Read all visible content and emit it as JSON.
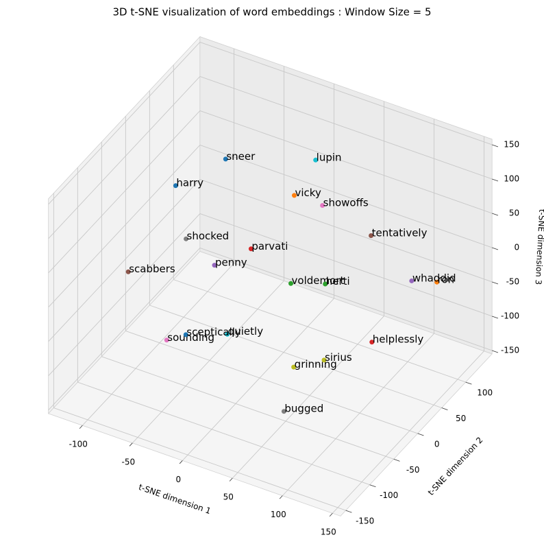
{
  "chart_data": {
    "type": "scatter3d",
    "title": "3D t-SNE visualization of word embeddings : Window Size = 5",
    "xlabel": "t-SNE dimension 1",
    "ylabel": "t-SNE dimension 2",
    "zlabel": "t-SNE dimension 3",
    "xlim": [
      -134,
      158
    ],
    "ylim": [
      -161,
      155
    ],
    "zlim": [
      -155,
      158
    ],
    "xticks": [
      -100,
      -50,
      0,
      50,
      100,
      150
    ],
    "yticks": [
      -150,
      -100,
      -50,
      0,
      50,
      100
    ],
    "zticks": [
      -150,
      -100,
      -50,
      0,
      50,
      100,
      150
    ],
    "grid": true,
    "labels": [
      "sneer",
      "vicky",
      "voldemort",
      "parvati",
      "penny",
      "scabbers",
      "showoffs",
      "shocked",
      "grinning",
      "lupin",
      "harry",
      "ron",
      "herti",
      "helplessly",
      "whaddid",
      "tentatively",
      "sounding",
      "bugged",
      "sirius",
      "quietly",
      "sceptically"
    ],
    "x": [
      -58,
      25,
      12,
      -23,
      -26,
      -93,
      34,
      -64,
      58,
      8,
      -60,
      134,
      32,
      93,
      104,
      73,
      -45,
      77,
      74,
      -18,
      -45
    ],
    "y": [
      50,
      20,
      40,
      30,
      -40,
      -80,
      60,
      -20,
      -50,
      100,
      -50,
      90,
      70,
      40,
      100,
      80,
      -100,
      -110,
      -20,
      -30,
      -60
    ],
    "z": [
      97,
      109,
      -41,
      -1,
      26,
      12,
      69,
      30,
      -72,
      92,
      132,
      -14,
      -54,
      -85,
      -35,
      30,
      -48,
      -82,
      -76,
      -78,
      -70
    ],
    "colors": [
      "#1f77b4",
      "#ff7f0e",
      "#2ca02c",
      "#d62728",
      "#9467bd",
      "#8c564b",
      "#e377c2",
      "#7f7f7f",
      "#bcbd22",
      "#17becf",
      "#1f77b4",
      "#ff7f0e",
      "#2ca02c",
      "#d62728",
      "#9467bd",
      "#8c564b",
      "#e377c2",
      "#7f7f7f",
      "#bcbd22",
      "#17becf",
      "#1f77b4"
    ]
  }
}
